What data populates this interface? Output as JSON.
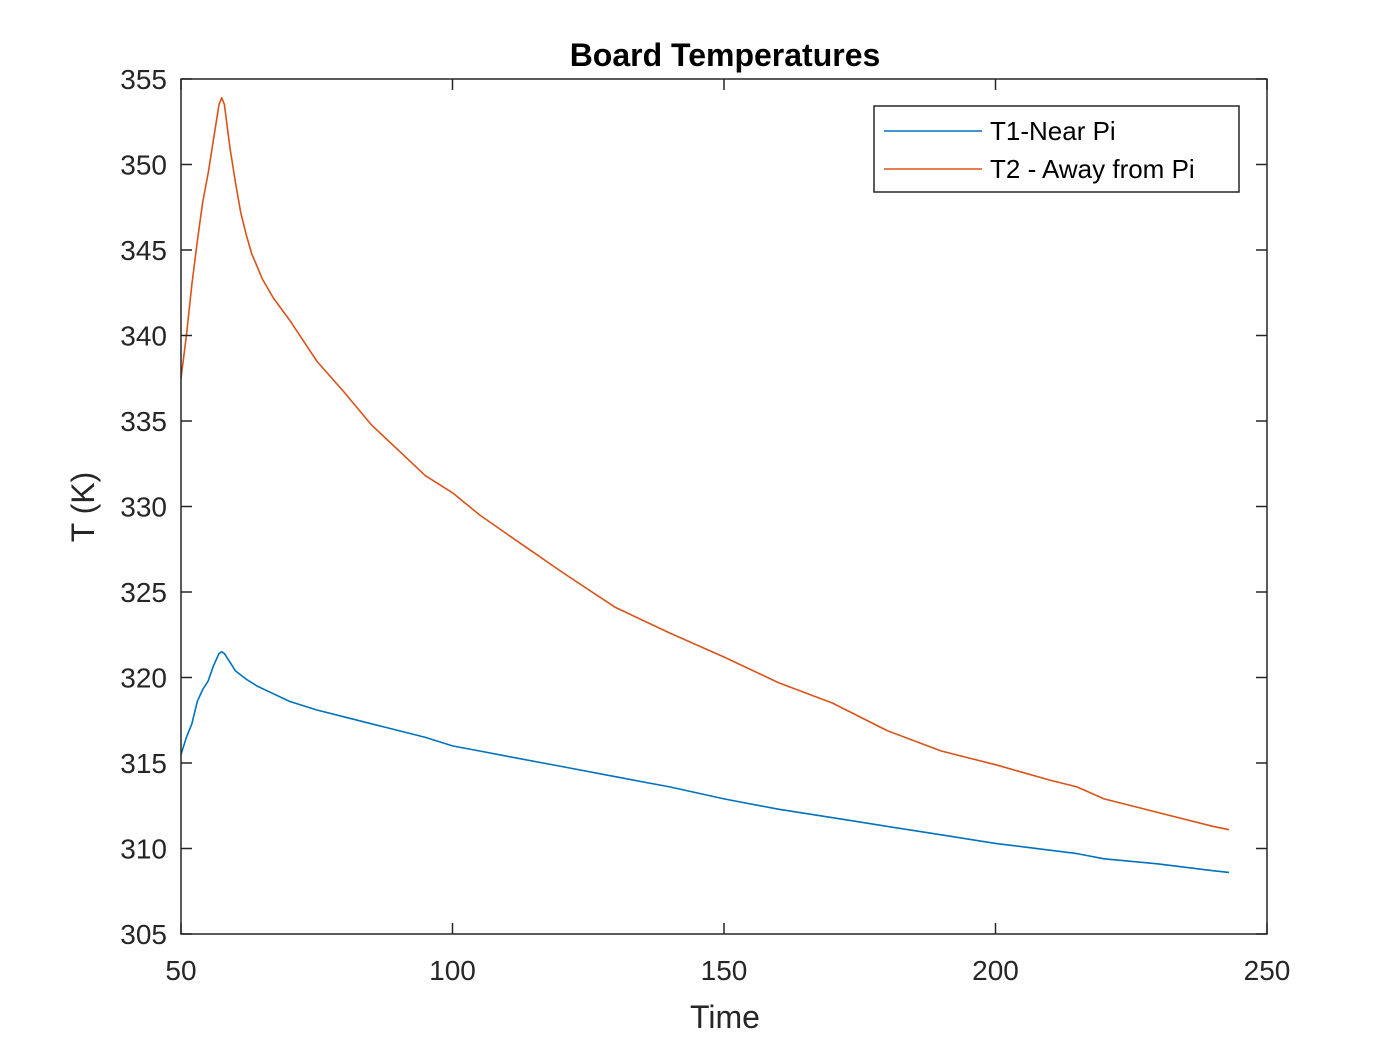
{
  "chart_data": {
    "type": "line",
    "title": "Board Temperatures",
    "xlabel": "Time",
    "ylabel": "T (K)",
    "xlim": [
      50,
      250
    ],
    "ylim": [
      305,
      355
    ],
    "xticks": [
      50,
      100,
      150,
      200,
      250
    ],
    "yticks": [
      305,
      310,
      315,
      320,
      325,
      330,
      335,
      340,
      345,
      350,
      355
    ],
    "grid": false,
    "legend_position": "top-right",
    "series": [
      {
        "name": "T1-Near Pi",
        "color": "#0072BD",
        "x": [
          50,
          51,
          52,
          53,
          54,
          55,
          56,
          57,
          57.5,
          58,
          59,
          60,
          62,
          64,
          66,
          70,
          75,
          80,
          85,
          90,
          95,
          100,
          105,
          110,
          120,
          130,
          140,
          150,
          160,
          170,
          180,
          190,
          200,
          210,
          215,
          220,
          230,
          240,
          243
        ],
        "y": [
          315.5,
          316.5,
          317.3,
          318.6,
          319.3,
          319.8,
          320.7,
          321.4,
          321.5,
          321.4,
          320.9,
          320.4,
          319.9,
          319.5,
          319.2,
          318.6,
          318.1,
          317.7,
          317.3,
          316.9,
          316.5,
          316.0,
          315.7,
          315.4,
          314.8,
          314.2,
          313.6,
          312.9,
          312.3,
          311.8,
          311.3,
          310.8,
          310.3,
          309.9,
          309.7,
          309.4,
          309.1,
          308.7,
          308.6
        ]
      },
      {
        "name": "T2 - Away from Pi",
        "color": "#D95319",
        "x": [
          50,
          51,
          52,
          53,
          54,
          55,
          56,
          57,
          57.5,
          58,
          59,
          60,
          61,
          62,
          63,
          65,
          67,
          70,
          75,
          80,
          85,
          90,
          95,
          100,
          105,
          110,
          115,
          120,
          130,
          140,
          150,
          160,
          170,
          180,
          190,
          200,
          210,
          215,
          220,
          230,
          240,
          243
        ],
        "y": [
          337.5,
          340.0,
          343.0,
          345.5,
          347.8,
          349.5,
          351.5,
          353.5,
          353.9,
          353.5,
          351.0,
          349.0,
          347.2,
          345.9,
          344.8,
          343.3,
          342.2,
          340.9,
          338.5,
          336.7,
          334.8,
          333.3,
          331.8,
          330.8,
          329.5,
          328.4,
          327.3,
          326.2,
          324.1,
          322.6,
          321.2,
          319.7,
          318.5,
          316.9,
          315.7,
          314.9,
          314.0,
          313.6,
          312.9,
          312.1,
          311.3,
          311.1
        ]
      }
    ]
  }
}
